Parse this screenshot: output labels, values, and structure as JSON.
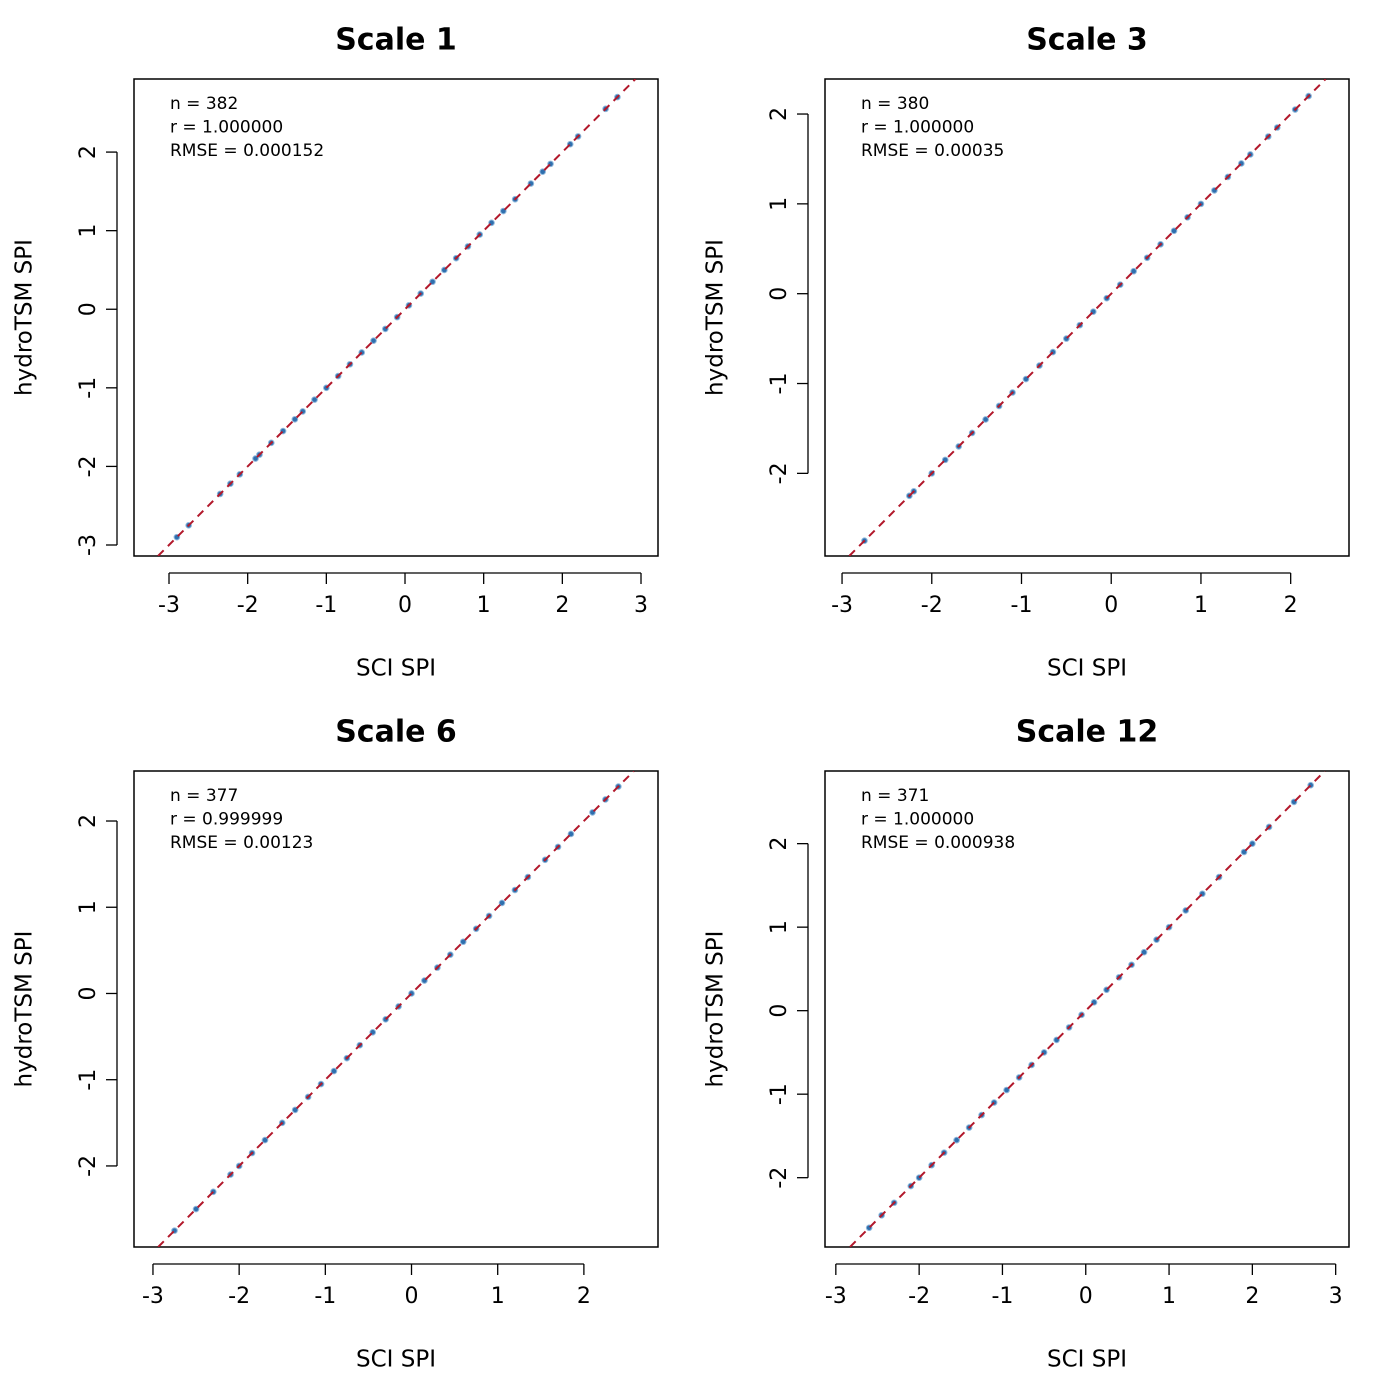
{
  "chart_data": [
    {
      "type": "scatter",
      "title": "Scale 1",
      "xlabel": "SCI SPI",
      "ylabel": "hydroTSM SPI",
      "annotations": [
        "n = 382",
        "r = 1.000000",
        "RMSE = 0.000152"
      ],
      "x": [
        -2.9,
        -2.75,
        -2.35,
        -2.22,
        -2.1,
        -1.9,
        -1.85,
        -1.7,
        -1.55,
        -1.4,
        -1.3,
        -1.15,
        -1.0,
        -0.85,
        -0.7,
        -0.55,
        -0.4,
        -0.25,
        -0.1,
        0.05,
        0.2,
        0.35,
        0.5,
        0.65,
        0.8,
        0.95,
        1.1,
        1.25,
        1.4,
        1.6,
        1.75,
        1.85,
        2.1,
        2.2,
        2.55,
        2.7
      ],
      "values": [
        -2.9,
        -2.75,
        -2.35,
        -2.22,
        -2.1,
        -1.9,
        -1.85,
        -1.7,
        -1.55,
        -1.4,
        -1.3,
        -1.15,
        -1.0,
        -0.85,
        -0.7,
        -0.55,
        -0.4,
        -0.25,
        -0.1,
        0.05,
        0.2,
        0.35,
        0.5,
        0.65,
        0.8,
        0.95,
        1.1,
        1.25,
        1.4,
        1.6,
        1.75,
        1.85,
        2.1,
        2.2,
        2.55,
        2.7
      ],
      "color": "#2f6fae",
      "diagonal": true,
      "diagonal_color": "#b2182b",
      "xlim": [
        -3.445,
        3.216
      ],
      "ylim": [
        -3.14,
        2.93
      ],
      "xticks": [
        -3,
        -2,
        -1,
        0,
        1,
        2,
        3
      ],
      "yticks": [
        -3,
        -2,
        -1,
        0,
        1,
        2
      ]
    },
    {
      "type": "scatter",
      "title": "Scale 3",
      "xlabel": "SCI SPI",
      "ylabel": "hydroTSM SPI",
      "annotations": [
        "n = 380",
        "r = 1.000000",
        "RMSE = 0.00035"
      ],
      "x": [
        -2.75,
        -2.25,
        -2.2,
        -2.0,
        -1.85,
        -1.7,
        -1.55,
        -1.4,
        -1.25,
        -1.1,
        -0.95,
        -0.8,
        -0.65,
        -0.5,
        -0.35,
        -0.2,
        -0.05,
        0.1,
        0.25,
        0.4,
        0.55,
        0.7,
        0.85,
        1.0,
        1.15,
        1.3,
        1.45,
        1.55,
        1.75,
        1.85,
        2.05,
        2.2
      ],
      "values": [
        -2.75,
        -2.25,
        -2.2,
        -2.0,
        -1.85,
        -1.7,
        -1.55,
        -1.4,
        -1.25,
        -1.1,
        -0.95,
        -0.8,
        -0.65,
        -0.5,
        -0.35,
        -0.2,
        -0.05,
        0.1,
        0.25,
        0.4,
        0.55,
        0.7,
        0.85,
        1.0,
        1.15,
        1.3,
        1.45,
        1.55,
        1.75,
        1.85,
        2.05,
        2.2
      ],
      "color": "#2f6fae",
      "diagonal": true,
      "diagonal_color": "#b2182b",
      "xlim": [
        -3.19,
        2.65
      ],
      "ylim": [
        -2.92,
        2.39
      ],
      "xticks": [
        -3,
        -2,
        -1,
        0,
        1,
        2
      ],
      "yticks": [
        -2,
        -1,
        0,
        1,
        2
      ]
    },
    {
      "type": "scatter",
      "title": "Scale 6",
      "xlabel": "SCI SPI",
      "ylabel": "hydroTSM SPI",
      "annotations": [
        "n = 377",
        "r = 0.999999",
        "RMSE = 0.00123"
      ],
      "x": [
        -2.75,
        -2.5,
        -2.3,
        -2.1,
        -2.0,
        -1.85,
        -1.7,
        -1.5,
        -1.35,
        -1.2,
        -1.05,
        -0.9,
        -0.75,
        -0.6,
        -0.45,
        -0.3,
        -0.15,
        0.0,
        0.15,
        0.3,
        0.45,
        0.6,
        0.75,
        0.9,
        1.05,
        1.2,
        1.35,
        1.55,
        1.7,
        1.85,
        2.1,
        2.25,
        2.4
      ],
      "values": [
        -2.75,
        -2.5,
        -2.3,
        -2.1,
        -2.0,
        -1.85,
        -1.7,
        -1.5,
        -1.35,
        -1.2,
        -1.05,
        -0.9,
        -0.75,
        -0.6,
        -0.45,
        -0.3,
        -0.15,
        0.0,
        0.15,
        0.3,
        0.45,
        0.6,
        0.75,
        0.9,
        1.05,
        1.2,
        1.35,
        1.55,
        1.7,
        1.85,
        2.1,
        2.25,
        2.4
      ],
      "color": "#2f6fae",
      "diagonal": true,
      "diagonal_color": "#b2182b",
      "xlim": [
        -3.22,
        2.86
      ],
      "ylim": [
        -2.94,
        2.58
      ],
      "xticks": [
        -3,
        -2,
        -1,
        0,
        1,
        2
      ],
      "yticks": [
        -2,
        -1,
        0,
        1,
        2
      ]
    },
    {
      "type": "scatter",
      "title": "Scale 12",
      "xlabel": "SCI SPI",
      "ylabel": "hydroTSM SPI",
      "annotations": [
        "n = 371",
        "r = 1.000000",
        "RMSE = 0.000938"
      ],
      "x": [
        -2.6,
        -2.45,
        -2.3,
        -2.1,
        -2.0,
        -1.85,
        -1.7,
        -1.55,
        -1.4,
        -1.25,
        -1.1,
        -0.95,
        -0.8,
        -0.65,
        -0.5,
        -0.35,
        -0.2,
        -0.05,
        0.1,
        0.25,
        0.4,
        0.55,
        0.7,
        0.85,
        1.0,
        1.2,
        1.4,
        1.6,
        1.9,
        2.0,
        2.2,
        2.5,
        2.7
      ],
      "values": [
        -2.6,
        -2.45,
        -2.3,
        -2.1,
        -2.0,
        -1.85,
        -1.7,
        -1.55,
        -1.4,
        -1.25,
        -1.1,
        -0.95,
        -0.8,
        -0.65,
        -0.5,
        -0.35,
        -0.2,
        -0.05,
        0.1,
        0.25,
        0.4,
        0.55,
        0.7,
        0.85,
        1.0,
        1.2,
        1.4,
        1.6,
        1.9,
        2.0,
        2.2,
        2.5,
        2.7
      ],
      "color": "#2f6fae",
      "diagonal": true,
      "diagonal_color": "#b2182b",
      "xlim": [
        -3.13,
        3.16
      ],
      "ylim": [
        -2.83,
        2.87
      ],
      "xticks": [
        -3,
        -2,
        -1,
        0,
        1,
        2,
        3
      ],
      "yticks": [
        -2,
        -1,
        0,
        1,
        2
      ]
    }
  ]
}
